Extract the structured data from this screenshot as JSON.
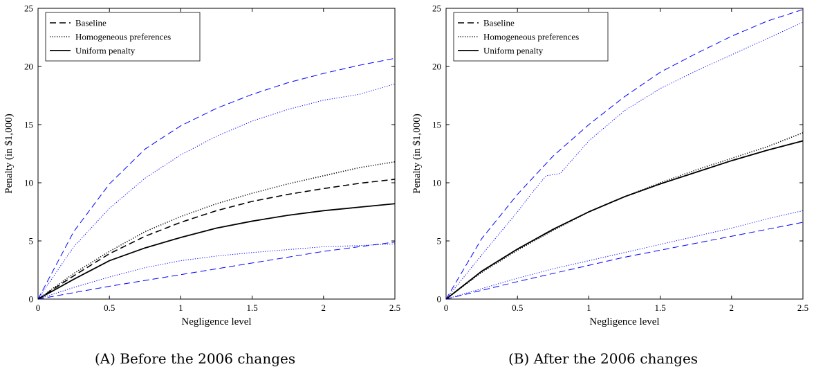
{
  "chart_data": [
    {
      "type": "line",
      "caption": "(A) Before the 2006 changes",
      "xlabel": "Negligence level",
      "ylabel": "Penalty (in $1,000)",
      "xlim": [
        0,
        2.5
      ],
      "ylim": [
        0,
        25
      ],
      "xticks": [
        "0",
        "0.5",
        "1",
        "1.5",
        "2",
        "2.5"
      ],
      "yticks": [
        "0",
        "5",
        "10",
        "15",
        "20",
        "25"
      ],
      "grid": false,
      "legend_position": "top-left",
      "legend": [
        "Baseline",
        "Homogeneous preferences",
        "Uniform penalty"
      ],
      "series": [
        {
          "name": "Baseline",
          "style": "dashed",
          "color": "#000000",
          "x": [
            0,
            0.25,
            0.5,
            0.75,
            1.0,
            1.25,
            1.5,
            1.75,
            2.0,
            2.25,
            2.5
          ],
          "y": [
            0,
            2.0,
            3.9,
            5.4,
            6.6,
            7.6,
            8.4,
            9.0,
            9.5,
            9.95,
            10.3
          ]
        },
        {
          "name": "Homogeneous preferences",
          "style": "dotted",
          "color": "#000000",
          "x": [
            0,
            0.25,
            0.5,
            0.75,
            1.0,
            1.25,
            1.5,
            1.75,
            2.0,
            2.25,
            2.5
          ],
          "y": [
            0,
            2.2,
            4.1,
            5.8,
            7.1,
            8.2,
            9.1,
            9.9,
            10.6,
            11.3,
            11.8
          ]
        },
        {
          "name": "Uniform penalty",
          "style": "solid",
          "color": "#000000",
          "x": [
            0,
            0.25,
            0.5,
            0.75,
            1.0,
            1.25,
            1.5,
            1.75,
            2.0,
            2.25,
            2.5
          ],
          "y": [
            0,
            1.7,
            3.3,
            4.4,
            5.3,
            6.1,
            6.7,
            7.2,
            7.6,
            7.9,
            8.2
          ]
        },
        {
          "style": "dashed",
          "color": "#0000ff",
          "x": [
            0,
            0.25,
            0.5,
            0.75,
            1.0,
            1.25,
            1.5,
            1.75,
            2.0,
            2.25,
            2.5
          ],
          "y": [
            0,
            5.8,
            9.9,
            12.9,
            14.9,
            16.4,
            17.6,
            18.6,
            19.4,
            20.1,
            20.7
          ]
        },
        {
          "style": "dotted",
          "color": "#0000ff",
          "x": [
            0,
            0.25,
            0.5,
            0.75,
            1.0,
            1.25,
            1.5,
            1.75,
            2.0,
            2.25,
            2.5
          ],
          "y": [
            0,
            4.5,
            7.8,
            10.4,
            12.4,
            14.0,
            15.3,
            16.3,
            17.1,
            17.6,
            18.5
          ]
        },
        {
          "style": "dotted",
          "color": "#0000ff",
          "x": [
            0,
            0.25,
            0.5,
            0.75,
            1.0,
            1.25,
            1.5,
            1.75,
            2.0,
            2.25,
            2.5
          ],
          "y": [
            0,
            1.0,
            1.9,
            2.7,
            3.3,
            3.7,
            4.0,
            4.25,
            4.5,
            4.6,
            4.75
          ]
        },
        {
          "style": "dashed",
          "color": "#0000ff",
          "x": [
            0,
            0.25,
            0.5,
            0.75,
            1.0,
            1.25,
            1.5,
            1.75,
            2.0,
            2.25,
            2.5
          ],
          "y": [
            0,
            0.55,
            1.1,
            1.6,
            2.1,
            2.6,
            3.1,
            3.6,
            4.1,
            4.5,
            4.9
          ]
        }
      ]
    },
    {
      "type": "line",
      "caption": "(B) After the 2006 changes",
      "xlabel": "Negligence level",
      "ylabel": "Penalty (in $1,000)",
      "xlim": [
        0,
        2.5
      ],
      "ylim": [
        0,
        25
      ],
      "xticks": [
        "0",
        "0.5",
        "1",
        "1.5",
        "2",
        "2.5"
      ],
      "yticks": [
        "0",
        "5",
        "10",
        "15",
        "20",
        "25"
      ],
      "grid": false,
      "legend_position": "top-left",
      "legend": [
        "Baseline",
        "Homogeneous preferences",
        "Uniform penalty"
      ],
      "series": [
        {
          "name": "Baseline",
          "style": "dashed",
          "color": "#000000",
          "x": [
            0,
            0.25,
            0.5,
            0.75,
            1.0,
            1.25,
            1.5,
            1.75,
            2.0,
            2.25,
            2.5
          ],
          "y": [
            0,
            2.4,
            4.3,
            6.0,
            7.5,
            8.8,
            9.9,
            10.9,
            11.9,
            12.8,
            13.6
          ]
        },
        {
          "name": "Homogeneous preferences",
          "style": "dotted",
          "color": "#000000",
          "x": [
            0,
            0.25,
            0.5,
            0.75,
            1.0,
            1.25,
            1.5,
            1.75,
            2.0,
            2.25,
            2.5
          ],
          "y": [
            0,
            2.3,
            4.2,
            5.9,
            7.5,
            8.8,
            10.0,
            11.1,
            12.1,
            13.1,
            14.3
          ]
        },
        {
          "name": "Uniform penalty",
          "style": "solid",
          "color": "#000000",
          "x": [
            0,
            0.25,
            0.5,
            0.75,
            1.0,
            1.25,
            1.5,
            1.75,
            2.0,
            2.25,
            2.5
          ],
          "y": [
            0,
            2.4,
            4.3,
            6.0,
            7.5,
            8.8,
            9.9,
            10.9,
            11.9,
            12.8,
            13.6
          ]
        },
        {
          "style": "dashed",
          "color": "#0000ff",
          "x": [
            0,
            0.25,
            0.5,
            0.75,
            1.0,
            1.25,
            1.5,
            1.75,
            2.0,
            2.25,
            2.5
          ],
          "y": [
            0,
            5.2,
            9.0,
            12.3,
            15.0,
            17.4,
            19.5,
            21.1,
            22.6,
            23.9,
            24.9
          ]
        },
        {
          "style": "dotted",
          "color": "#0000ff",
          "x": [
            0,
            0.25,
            0.5,
            0.6,
            0.7,
            0.8,
            0.9,
            1.0,
            1.25,
            1.5,
            1.75,
            2.0,
            2.25,
            2.5
          ],
          "y": [
            0,
            3.8,
            7.5,
            9.1,
            10.6,
            10.8,
            12.2,
            13.6,
            16.2,
            18.1,
            19.6,
            21.0,
            22.4,
            23.8
          ]
        },
        {
          "style": "dotted",
          "color": "#0000ff",
          "x": [
            0,
            0.25,
            0.5,
            0.75,
            1.0,
            1.25,
            1.5,
            1.75,
            2.0,
            2.25,
            2.5
          ],
          "y": [
            0,
            0.9,
            1.8,
            2.6,
            3.3,
            4.0,
            4.7,
            5.4,
            6.1,
            6.9,
            7.6
          ]
        },
        {
          "style": "dashed",
          "color": "#0000ff",
          "x": [
            0,
            0.25,
            0.5,
            0.75,
            1.0,
            1.25,
            1.5,
            1.75,
            2.0,
            2.25,
            2.5
          ],
          "y": [
            0,
            0.75,
            1.5,
            2.2,
            2.9,
            3.6,
            4.2,
            4.8,
            5.4,
            6.0,
            6.6
          ]
        }
      ]
    }
  ]
}
